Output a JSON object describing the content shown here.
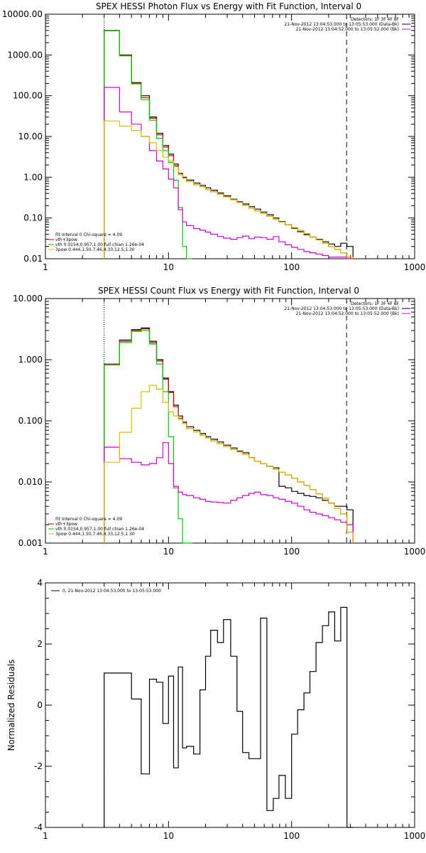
{
  "colors": {
    "background": "#ffffff",
    "axis": "#000000",
    "black": "#000000",
    "red": "#d00000",
    "green": "#00c800",
    "magenta": "#d000d0",
    "yellow": "#d6c000",
    "orange": "#d09000"
  },
  "chart_data": [
    {
      "type": "line",
      "title": "SPEX HESSI Photon Flux vs Energy with Fit Function, Interval 0",
      "xscale": "log",
      "yscale": "log",
      "xlim": [
        1,
        1000
      ],
      "ylim": [
        0.01,
        10000
      ],
      "xticks": [
        "1",
        "10",
        "100",
        "1000"
      ],
      "yticks": [
        "0.01",
        "0.10",
        "1.00",
        "10.00",
        "100.00",
        "1000.00",
        "10000.00"
      ],
      "ytick_values": [
        0.01,
        0.1,
        1,
        10,
        100,
        1000,
        10000
      ],
      "vlines": [
        {
          "x": 3,
          "style": "dotted"
        },
        {
          "x": 280,
          "style": "dashed"
        }
      ],
      "legend_top_right": [
        {
          "text": "Detectors: 1F 3F 4F 8F",
          "color": "#000000"
        },
        {
          "text": "21-Nov-2012 13:04:53.000 to 13:05:53.000 (Data-Bk)",
          "color": "#000000"
        },
        {
          "text": "21-Nov-2012 13:04:52.000 to 13:05:52.000 (Bk)",
          "color": "#d000d0"
        }
      ],
      "legend_bottom_left": [
        {
          "text": "Fit Interval 0   Chi-square = 4.09",
          "color": "#000000"
        },
        {
          "text": "vth+3pow",
          "color": "#d00000"
        },
        {
          "text": "vth 0.0154,0.957,1.00  full chian 1.26e-04",
          "color": "#00c800"
        },
        {
          "text": "3pow 0.444,1.50,7.46,4.33,12.5,1.30",
          "color": "#d6c000"
        }
      ],
      "series": [
        {
          "color": "#000000",
          "x": [
            3,
            4,
            5,
            6,
            7,
            8,
            9,
            10,
            11,
            12,
            13,
            14,
            16,
            18,
            20,
            22,
            25,
            28,
            32,
            36,
            40,
            45,
            50,
            56,
            63,
            71,
            79,
            89,
            100,
            112,
            126,
            141,
            158,
            178,
            200,
            224,
            251,
            282
          ],
          "y": [
            4000,
            1000,
            210,
            100,
            30,
            12,
            6,
            3.7,
            2.1,
            1.25,
            1.0,
            0.85,
            0.72,
            0.63,
            0.55,
            0.48,
            0.41,
            0.35,
            0.29,
            0.25,
            0.22,
            0.19,
            0.165,
            0.14,
            0.12,
            0.1,
            0.082,
            0.068,
            0.056,
            0.046,
            0.039,
            0.034,
            0.03,
            0.026,
            0.023,
            0.02,
            0.024,
            0.02
          ]
        },
        {
          "color": "#d00000",
          "x": [
            3,
            4,
            5,
            6,
            7,
            8,
            9,
            10,
            11,
            12,
            13,
            14,
            16,
            18,
            20,
            22,
            25,
            28,
            32,
            36,
            40,
            45,
            50,
            56,
            63,
            71,
            79,
            89,
            100,
            112,
            126,
            141,
            158,
            178,
            200,
            224,
            251,
            282
          ],
          "y": [
            3950,
            980,
            205,
            90,
            28,
            11,
            5.5,
            3.4,
            1.9,
            1.15,
            0.95,
            0.78,
            0.66,
            0.58,
            0.5,
            0.44,
            0.38,
            0.33,
            0.28,
            0.24,
            0.205,
            0.175,
            0.15,
            0.13,
            0.11,
            0.093,
            0.08,
            0.068,
            0.058,
            0.049,
            0.041,
            0.034,
            0.029,
            0.024,
            0.02,
            0.017,
            0.014,
            0.011
          ]
        },
        {
          "color": "#00c800",
          "x": [
            3,
            4,
            5,
            6,
            7,
            8,
            9,
            10,
            11,
            12,
            13,
            14
          ],
          "y": [
            3900,
            950,
            195,
            80,
            25,
            9,
            4.5,
            2.3,
            0.85,
            0.18,
            0.02,
            0.01
          ]
        },
        {
          "color": "#d000d0",
          "x": [
            3,
            4,
            5,
            6,
            7,
            8,
            9,
            10,
            11,
            12,
            13,
            14,
            16,
            18,
            20,
            22,
            25,
            28,
            32,
            36,
            40,
            45,
            50,
            56,
            63,
            71,
            79,
            89,
            100,
            112,
            126,
            141,
            158,
            178,
            200,
            224,
            251,
            282
          ],
          "y": [
            160,
            40,
            20,
            10,
            4.5,
            2.5,
            1.6,
            0.9,
            0.55,
            0.16,
            0.08,
            0.065,
            0.055,
            0.05,
            0.045,
            0.04,
            0.035,
            0.032,
            0.03,
            0.033,
            0.036,
            0.031,
            0.034,
            0.033,
            0.03,
            0.035,
            0.026,
            0.022,
            0.019,
            0.017,
            0.015,
            0.014,
            0.013,
            0.012,
            0.011,
            0.011,
            0.011,
            0.01
          ]
        },
        {
          "color": "#d6c000",
          "x": [
            3,
            4,
            5,
            6,
            7,
            8,
            9,
            10,
            11,
            12,
            13,
            14,
            16,
            18,
            20,
            22,
            25,
            28,
            32,
            36,
            40,
            45,
            50,
            56,
            63,
            71,
            79,
            89,
            100,
            112,
            126,
            141,
            158,
            178,
            200,
            224,
            251,
            282
          ],
          "y": [
            24,
            18,
            14,
            10,
            7,
            4.5,
            3.1,
            2.5,
            1.8,
            1.15,
            0.95,
            0.78,
            0.66,
            0.58,
            0.5,
            0.44,
            0.38,
            0.33,
            0.28,
            0.24,
            0.205,
            0.175,
            0.15,
            0.13,
            0.11,
            0.093,
            0.08,
            0.068,
            0.058,
            0.049,
            0.041,
            0.034,
            0.029,
            0.024,
            0.02,
            0.017,
            0.014,
            0.011
          ]
        }
      ]
    },
    {
      "type": "line",
      "title": "SPEX HESSI Count Flux vs Energy with Fit Function, Interval 0",
      "xscale": "log",
      "yscale": "log",
      "xlim": [
        1,
        1000
      ],
      "ylim": [
        0.001,
        10
      ],
      "xticks": [
        "1",
        "10",
        "100",
        "1000"
      ],
      "yticks": [
        "0.001",
        "0.010",
        "0.100",
        "1.000",
        "10.000"
      ],
      "ytick_values": [
        0.001,
        0.01,
        0.1,
        1,
        10
      ],
      "vlines": [
        {
          "x": 3,
          "style": "dotted"
        },
        {
          "x": 280,
          "style": "dashed"
        }
      ],
      "legend_top_right": [
        {
          "text": "Detectors: 1F 3F 4F 8F",
          "color": "#000000"
        },
        {
          "text": "21-Nov-2012 13:04:53.000 to 13:05:53.000 (Data-Bk)",
          "color": "#000000"
        },
        {
          "text": "21-Nov-2012 13:04:52.000 to 13:05:52.000 (Bk)",
          "color": "#d000d0"
        }
      ],
      "legend_bottom_left": [
        {
          "text": "Fit Interval 0   Chi-square = 4.09",
          "color": "#000000"
        },
        {
          "text": "vth+3pow",
          "color": "#d00000"
        },
        {
          "text": "vth 0.0154,0.957,1.00  full chian 1.26e-04",
          "color": "#00c800"
        },
        {
          "text": "3pow 0.444,1.50,7.46,4.33,12.5,1.30",
          "color": "#d6c000"
        }
      ],
      "series": [
        {
          "color": "#000000",
          "x": [
            3,
            4,
            5,
            6,
            7,
            8,
            9,
            10,
            11,
            12,
            13,
            14,
            16,
            18,
            20,
            22,
            25,
            28,
            32,
            36,
            40,
            45,
            50,
            56,
            63,
            71,
            79,
            89,
            100,
            112,
            126,
            141,
            158,
            178,
            200,
            224,
            251,
            282
          ],
          "y": [
            0.85,
            2.1,
            3.1,
            3.3,
            2.0,
            1.0,
            0.5,
            0.3,
            0.18,
            0.12,
            0.095,
            0.08,
            0.07,
            0.062,
            0.055,
            0.05,
            0.045,
            0.04,
            0.036,
            0.032,
            0.03,
            0.025,
            0.022,
            0.02,
            0.018,
            0.017,
            0.0085,
            0.008,
            0.007,
            0.0065,
            0.006,
            0.0058,
            0.0055,
            0.005,
            0.0045,
            0.004,
            0.004,
            0.0035
          ]
        },
        {
          "color": "#d00000",
          "x": [
            3,
            4,
            5,
            6,
            7,
            8,
            9,
            10,
            11,
            12,
            13,
            14,
            16,
            18,
            20,
            22,
            25,
            28,
            32,
            36,
            40,
            45,
            50,
            56,
            63,
            71,
            79,
            89,
            100,
            112,
            126,
            141,
            158,
            178,
            200,
            224,
            251,
            282
          ],
          "y": [
            0.85,
            2.0,
            3.0,
            3.2,
            1.9,
            0.95,
            0.48,
            0.29,
            0.17,
            0.11,
            0.09,
            0.075,
            0.066,
            0.058,
            0.052,
            0.047,
            0.042,
            0.038,
            0.034,
            0.031,
            0.028,
            0.025,
            0.022,
            0.02,
            0.018,
            0.016,
            0.0145,
            0.013,
            0.0115,
            0.01,
            0.0088,
            0.0075,
            0.0064,
            0.0054,
            0.0045,
            0.0037,
            0.003,
            0.0015
          ]
        },
        {
          "color": "#00c800",
          "x": [
            3,
            4,
            5,
            6,
            7,
            8,
            9,
            10,
            11,
            12,
            13,
            14
          ],
          "y": [
            0.82,
            1.9,
            2.9,
            3.0,
            1.8,
            0.85,
            0.3,
            0.055,
            0.008,
            0.0025,
            0.001,
            0.001
          ]
        },
        {
          "color": "#d000d0",
          "x": [
            3,
            4,
            5,
            6,
            7,
            8,
            9,
            10,
            11,
            12,
            13,
            14,
            16,
            18,
            20,
            22,
            25,
            28,
            32,
            36,
            40,
            45,
            50,
            56,
            63,
            71,
            79,
            89,
            100,
            112,
            126,
            141,
            158,
            178,
            200,
            224,
            251,
            282
          ],
          "y": [
            0.037,
            0.024,
            0.021,
            0.019,
            0.02,
            0.025,
            0.044,
            0.02,
            0.0085,
            0.0068,
            0.0062,
            0.006,
            0.0055,
            0.0052,
            0.0048,
            0.0047,
            0.0046,
            0.0045,
            0.005,
            0.0055,
            0.006,
            0.0065,
            0.0068,
            0.0062,
            0.006,
            0.0055,
            0.0052,
            0.0048,
            0.0045,
            0.004,
            0.0035,
            0.0032,
            0.003,
            0.0028,
            0.0026,
            0.0024,
            0.0022,
            0.002
          ]
        },
        {
          "color": "#d6c000",
          "x": [
            3,
            4,
            5,
            6,
            7,
            8,
            9,
            10,
            11,
            12,
            13,
            14,
            16,
            18,
            20,
            22,
            25,
            28,
            32,
            36,
            40,
            45,
            50,
            56,
            63,
            71,
            79,
            89,
            100,
            112,
            126,
            141,
            158,
            178,
            200,
            224,
            251,
            282
          ],
          "y": [
            0.021,
            0.065,
            0.16,
            0.3,
            0.38,
            0.33,
            0.2,
            0.14,
            0.12,
            0.105,
            0.09,
            0.075,
            0.066,
            0.058,
            0.052,
            0.047,
            0.042,
            0.038,
            0.034,
            0.031,
            0.028,
            0.025,
            0.022,
            0.02,
            0.018,
            0.016,
            0.0145,
            0.013,
            0.0115,
            0.01,
            0.0088,
            0.0075,
            0.0064,
            0.0054,
            0.0045,
            0.0037,
            0.003,
            0.0015
          ]
        }
      ]
    },
    {
      "type": "line",
      "title": "",
      "xscale": "log",
      "yscale": "linear",
      "xlim": [
        1,
        1000
      ],
      "ylim": [
        -4,
        4
      ],
      "xticks": [
        "1",
        "10",
        "100",
        "1000"
      ],
      "yticks": [
        "-4",
        "-2",
        "0",
        "2",
        "4"
      ],
      "ytick_values": [
        -4,
        -2,
        0,
        2,
        4
      ],
      "ylabel": "Normalized Residuals",
      "legend": "0, 21-Nov-2012 13:04:53.000 to 13:05:53.000",
      "series": [
        {
          "color": "#000000",
          "x": [
            3,
            4,
            5,
            6,
            7,
            8,
            9,
            10,
            11,
            12,
            13,
            14,
            16,
            18,
            20,
            22,
            25,
            28,
            32,
            36,
            40,
            45,
            50,
            56,
            63,
            71,
            79,
            89,
            100,
            112,
            126,
            141,
            158,
            178,
            200,
            224,
            251,
            282
          ],
          "y": [
            1.05,
            1.05,
            0.2,
            -2.25,
            0.85,
            0.75,
            -0.6,
            0.95,
            -2.05,
            1.25,
            -1.4,
            -1.35,
            -1.6,
            0.5,
            1.6,
            2.45,
            2.05,
            2.8,
            1.6,
            -0.2,
            -1.55,
            -1.75,
            -1.75,
            2.85,
            -3.45,
            -3.05,
            -2.3,
            -3.05,
            -0.95,
            -0.15,
            0.4,
            1.1,
            2.05,
            2.6,
            3.05,
            2.1,
            3.2,
            -4
          ]
        }
      ]
    }
  ]
}
